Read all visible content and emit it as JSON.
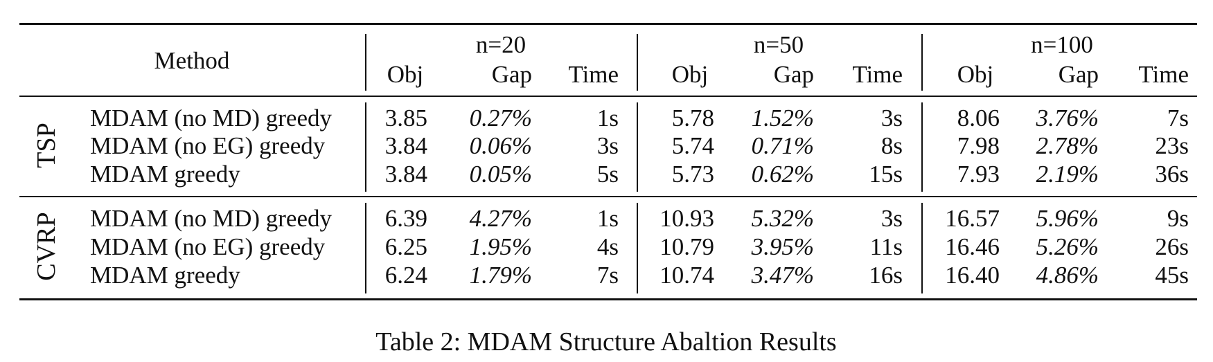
{
  "table": {
    "method_header": "Method",
    "groups": [
      {
        "label": "n=20",
        "cols": [
          "Obj",
          "Gap",
          "Time"
        ]
      },
      {
        "label": "n=50",
        "cols": [
          "Obj",
          "Gap",
          "Time"
        ]
      },
      {
        "label": "n=100",
        "cols": [
          "Obj",
          "Gap",
          "Time"
        ]
      }
    ],
    "sections": [
      {
        "problem": "TSP",
        "rows": [
          {
            "method": "MDAM (no MD) greedy",
            "vals": [
              "3.85",
              "0.27%",
              "1s",
              "5.78",
              "1.52%",
              "3s",
              "8.06",
              "3.76%",
              "7s"
            ]
          },
          {
            "method": "MDAM (no EG) greedy",
            "vals": [
              "3.84",
              "0.06%",
              "3s",
              "5.74",
              "0.71%",
              "8s",
              "7.98",
              "2.78%",
              "23s"
            ]
          },
          {
            "method": "MDAM greedy",
            "vals": [
              "3.84",
              "0.05%",
              "5s",
              "5.73",
              "0.62%",
              "15s",
              "7.93",
              "2.19%",
              "36s"
            ]
          }
        ]
      },
      {
        "problem": "CVRP",
        "rows": [
          {
            "method": "MDAM (no MD) greedy",
            "vals": [
              "6.39",
              "4.27%",
              "1s",
              "10.93",
              "5.32%",
              "3s",
              "16.57",
              "5.96%",
              "9s"
            ]
          },
          {
            "method": "MDAM (no EG) greedy",
            "vals": [
              "6.25",
              "1.95%",
              "4s",
              "10.79",
              "3.95%",
              "11s",
              "16.46",
              "5.26%",
              "26s"
            ]
          },
          {
            "method": "MDAM greedy",
            "vals": [
              "6.24",
              "1.79%",
              "7s",
              "10.74",
              "3.47%",
              "16s",
              "16.40",
              "4.86%",
              "45s"
            ]
          }
        ]
      }
    ]
  },
  "caption": "Table 2: MDAM Structure Abaltion Results"
}
